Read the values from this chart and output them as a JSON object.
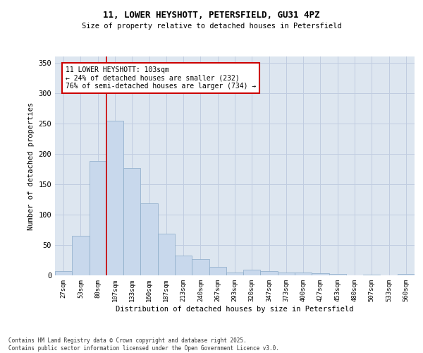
{
  "title_line1": "11, LOWER HEYSHOTT, PETERSFIELD, GU31 4PZ",
  "title_line2": "Size of property relative to detached houses in Petersfield",
  "xlabel": "Distribution of detached houses by size in Petersfield",
  "ylabel": "Number of detached properties",
  "footnote": "Contains HM Land Registry data © Crown copyright and database right 2025.\nContains public sector information licensed under the Open Government Licence v3.0.",
  "bar_color": "#c8d8ec",
  "bar_edge_color": "#8aaac8",
  "grid_color": "#c0cce0",
  "bg_color": "#dde6f0",
  "annotation_box_color": "#cc0000",
  "vline_color": "#cc0000",
  "categories": [
    "27sqm",
    "53sqm",
    "80sqm",
    "107sqm",
    "133sqm",
    "160sqm",
    "187sqm",
    "213sqm",
    "240sqm",
    "267sqm",
    "293sqm",
    "320sqm",
    "347sqm",
    "373sqm",
    "400sqm",
    "427sqm",
    "453sqm",
    "480sqm",
    "507sqm",
    "533sqm",
    "560sqm"
  ],
  "values": [
    7,
    65,
    188,
    254,
    177,
    119,
    68,
    33,
    27,
    14,
    5,
    9,
    7,
    5,
    5,
    3,
    2,
    0,
    1,
    0,
    2
  ],
  "ylim": [
    0,
    360
  ],
  "yticks": [
    0,
    50,
    100,
    150,
    200,
    250,
    300,
    350
  ],
  "vline_x_idx": 3,
  "annotation_text_line1": "11 LOWER HEYSHOTT: 103sqm",
  "annotation_text_line2": "← 24% of detached houses are smaller (232)",
  "annotation_text_line3": "76% of semi-detached houses are larger (734) →"
}
